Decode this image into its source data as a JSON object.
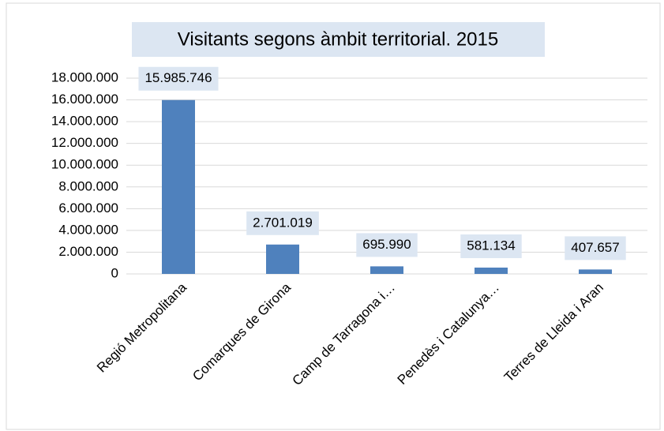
{
  "chart_data": {
    "type": "bar",
    "title": "Visitants segons àmbit territorial. 2015",
    "categories": [
      "Regió Metropolitana",
      "Comarques de Girona",
      "Camp de Tarragona i…",
      "Penedès i Catalunya…",
      "Terres de Lleida i Aran"
    ],
    "values": [
      15985746,
      2701019,
      695990,
      581134,
      407657
    ],
    "value_labels": [
      "15.985.746",
      "2.701.019",
      "695.990",
      "581.134",
      "407.657"
    ],
    "color": "#4f81bd",
    "ylim": [
      0,
      18000000
    ],
    "yticks": [
      0,
      {
        "value": 2000000,
        "label": "2.000.000"
      },
      {
        "value": 4000000,
        "label": "4.000.000"
      },
      {
        "value": 6000000,
        "label": "6.000.000"
      },
      {
        "value": 8000000,
        "label": "8.000.000"
      },
      {
        "value": 10000000,
        "label": "10.000.000"
      },
      {
        "value": 12000000,
        "label": "12.000.000"
      },
      {
        "value": 14000000,
        "label": "14.000.000"
      },
      {
        "value": 16000000,
        "label": "16.000.000"
      },
      {
        "value": 18000000,
        "label": "18.000.000"
      }
    ],
    "grid": true
  }
}
